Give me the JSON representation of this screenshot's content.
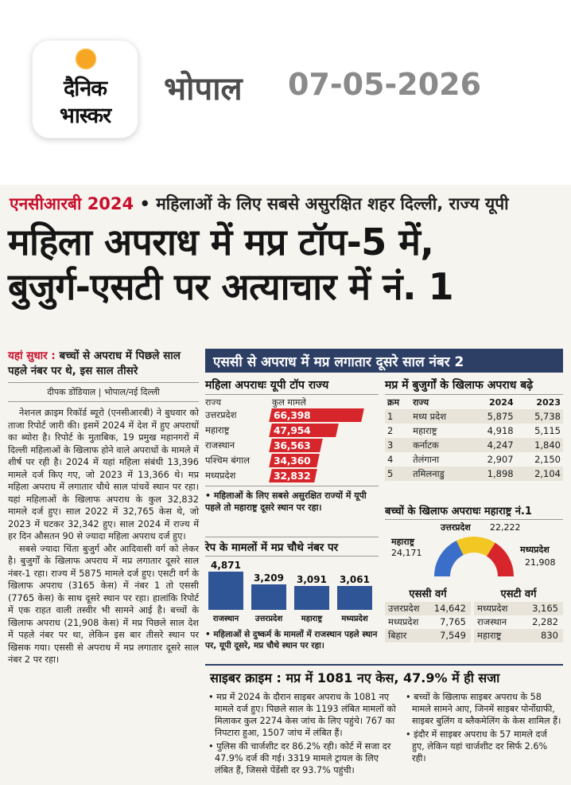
{
  "header": {
    "logo_line1": "दैनिक",
    "logo_line2": "भास्कर",
    "city": "भोपाल",
    "date": "07-05-2026"
  },
  "article": {
    "kicker_red": "एनसीआरबी 2024",
    "kicker_rest": "महिलाओं के लिए सबसे असुरक्षित शहर दिल्ली, राज्य यूपी",
    "headline_line1": "महिला अपराध में मप्र टॉप-5 में,",
    "headline_line2": "बुजुर्ग-एसटी पर अत्याचार में नं. 1",
    "sudhar_red": "यहां सुधार :",
    "sudhar_text": "बच्चों से अपराध में पिछले साल पहले नंबर पर थे, इस साल तीसरे",
    "byline": "दीपक डोंडियाल | भोपाल/नई दिल्ली",
    "para1": "नेशनल क्राइम रिकॉर्ड ब्यूरो (एनसीआरबी) ने बुधवार को ताजा रिपोर्ट जारी की। इसमें 2024 में देश में हुए अपराधों का ब्योरा है। रिपोर्ट के मुताबिक, 19 प्रमुख महानगरों में दिल्ली महिलाओं के खिलाफ होने वाले अपराधों के मामले में शीर्ष पर रही है। 2024 में यहां महिला संबंधी 13,396 मामले दर्ज किए गए, जो 2023 में 13,366 थे। मप्र महिला अपराध में लगातार चौथे साल पांचवें स्थान पर रहा। यहां महिलाओं के खिलाफ अपराध के कुल 32,832 मामले दर्ज हुए। साल 2022 में 32,765 केस थे, जो 2023 में घटकर 32,342 हुए। साल 2024 में राज्य में हर दिन औसतन 90 से ज्यादा महिला अपराध दर्ज हुए।",
    "para2": "सबसे ज्यादा चिंता बुजुर्ग और आदिवासी वर्ग को लेकर है। बुजुर्गों के खिलाफ अपराध में मप्र लगातार दूसरे साल नंबर-1 रहा। राज्य में 5875 मामले दर्ज हुए। एसटी वर्ग के खिलाफ अपराध (3165 केस) में नंबर 1 तो एससी (7765 केस) के साथ दूसरे स्थान पर रहा। हालांकि रिपोर्ट में एक राहत वाली तस्वीर भी सामने आई है। बच्चों के खिलाफ अपराध (21,908 केस) में मप्र पिछले साल देश में पहले नंबर पर था, लेकिन इस बार तीसरे स्थान पर खिसक गया। एससी से अपराध में मप्र लगातार दूसरे साल नंबर 2 पर रहा।"
  },
  "infographic": {
    "banner": "एससी से अपराध में मप्र लगातार दूसरे साल नंबर 2",
    "mahila": {
      "title": "महिला अपराधः यूपी टॉप राज्य",
      "col_state": "राज्य",
      "col_total": "कुल मामले",
      "rows": [
        {
          "state": "उत्तरप्रदेश",
          "value": "66,398",
          "num": 66398
        },
        {
          "state": "महाराष्ट्र",
          "value": "47,954",
          "num": 47954
        },
        {
          "state": "राजस्थान",
          "value": "36,563",
          "num": 36563
        },
        {
          "state": "पश्चिम बंगाल",
          "value": "34,360",
          "num": 34360
        },
        {
          "state": "मध्यप्रदेश",
          "value": "32,832",
          "num": 32832
        }
      ],
      "note": "• महिलाओं के लिए सबसे असुरक्षित राज्यों में यूपी पहले तो महाराष्ट्र दूसरे स्थान पर रहा।"
    },
    "bujurg": {
      "title": "मप्र में बुजुर्गों के खिलाफ अपराध बढ़े",
      "headers": [
        "क्रम",
        "राज्य",
        "2024",
        "2023"
      ],
      "rows": [
        [
          "1",
          "मध्य प्रदेश",
          "5,875",
          "5,738"
        ],
        [
          "2",
          "महाराष्ट्र",
          "4,918",
          "5,115"
        ],
        [
          "3",
          "कर्नाटक",
          "4,247",
          "1,840"
        ],
        [
          "4",
          "तेलंगाना",
          "2,907",
          "2,150"
        ],
        [
          "5",
          "तमिलनाडु",
          "1,898",
          "2,104"
        ]
      ]
    },
    "bachche": {
      "title": "बच्चों के खिलाफ अपराधः महाराष्ट्र नं.1",
      "labels": [
        {
          "state": "महाराष्ट्र",
          "value": "24,171"
        },
        {
          "state": "उत्तरप्रदेश",
          "value": "22,222"
        },
        {
          "state": "मध्यप्रदेश",
          "value": "21,908"
        }
      ]
    },
    "rape": {
      "title": "रेप के मामलों में मप्र चौथे नंबर पर",
      "note": "• महिलाओं से दुष्कर्म के मामलों में राजस्थान पहले स्थान पर, यूपी दूसरे, मप्र चौथे स्थान पर रहा।"
    },
    "sc": {
      "title": "एससी वर्ग",
      "rows": [
        [
          "उत्तरप्रदेश",
          "14,642"
        ],
        [
          "मध्यप्रदेश",
          "7,765"
        ],
        [
          "बिहार",
          "7,549"
        ]
      ]
    },
    "st": {
      "title": "एसटी वर्ग",
      "rows": [
        [
          "मध्यप्रदेश",
          "3,165"
        ],
        [
          "राजस्थान",
          "2,282"
        ],
        [
          "महाराष्ट्र",
          "830"
        ]
      ]
    },
    "cyber": {
      "title": "साइबर क्राइम : मप्र में 1081 नए केस, 47.9% में ही सजा",
      "left_b1": "• मप्र में 2024 के दौरान साइबर अपराध के 1081 नए मामले दर्ज हुए। पिछले साल के 1193 लंबित मामलों को मिलाकर कुल 2274 केस जांच के लिए पहुंचे। 767 का निपटारा हुआ, 1507 जांच में लंबित हैं।",
      "left_b2": "• पुलिस की चार्जशीट दर 86.2% रही। कोर्ट में सजा दर 47.9% दर्ज की गई। 3319 मामले ट्रायल के लिए लंबित हैं, जिससे पेंडेंसी दर 93.7% पहुंची।",
      "right_b1": "• बच्चों के खिलाफ साइबर अपराध के 58 मामले सामने आए, जिनमें साइबर पोर्नोग्राफी, साइबर बुलिंग व ब्लैकमेलिंग के केस शामिल हैं।",
      "right_b2": "• इंदौर में साइबर अपराध के 57 मामले दर्ज हुए, लेकिन यहां चार्जशीट दर सिर्फ 2.6% रही।"
    }
  },
  "chart_data": [
    {
      "type": "bar",
      "title": "महिला अपराधः यूपी टॉप राज्य",
      "categories": [
        "उत्तरप्रदेश",
        "महाराष्ट्र",
        "राजस्थान",
        "पश्चिम बंगाल",
        "मध्यप्रदेश"
      ],
      "values": [
        66398,
        47954,
        36563,
        34360,
        32832
      ]
    },
    {
      "type": "bar",
      "title": "रेप के मामलों में मप्र चौथे नंबर पर",
      "categories": [
        "राजस्थान",
        "उत्तरप्रदेश",
        "महाराष्ट्र",
        "मध्यप्रदेश"
      ],
      "values": [
        4871,
        3209,
        3091,
        3061
      ],
      "labels": [
        "4,871",
        "3,209",
        "3,091",
        "3,061"
      ],
      "color": "#2f5597"
    },
    {
      "type": "pie",
      "title": "बच्चों के खिलाफ अपराधः महाराष्ट्र नं.1",
      "categories": [
        "महाराष्ट्र",
        "उत्तरप्रदेश",
        "मध्यप्रदेश"
      ],
      "values": [
        24171,
        22222,
        21908
      ],
      "colors": [
        "#3b6ec9",
        "#f2c623",
        "#d7262b"
      ]
    }
  ],
  "colors": {
    "accent_red": "#c8102e",
    "banner_navy": "#2e3f66",
    "bar_red": "#d7262b",
    "bar_blue": "#2f5597"
  }
}
